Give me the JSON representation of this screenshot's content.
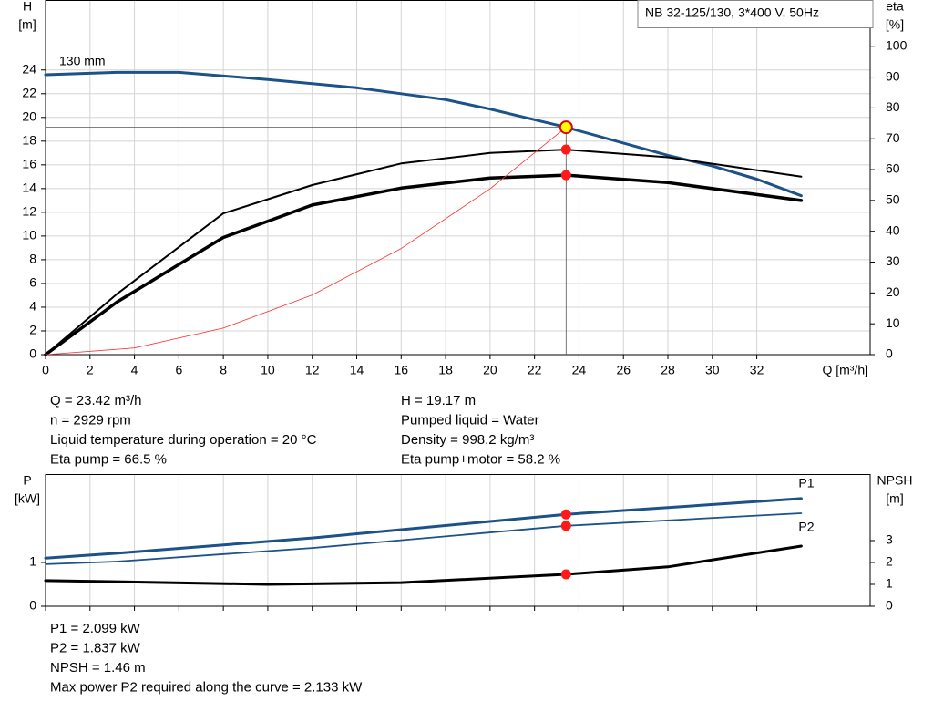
{
  "chart_data": [
    {
      "type": "line",
      "title": "NB 32-125/130, 3*400 V, 50Hz",
      "xlabel": "Q [m³/h]",
      "ylabel": [
        "H",
        "[m]"
      ],
      "y2label": [
        "eta",
        "[%]"
      ],
      "xlim": [
        0,
        37.1
      ],
      "xticks": [
        0,
        2,
        4,
        6,
        8,
        10,
        12,
        14,
        16,
        18,
        20,
        22,
        24,
        26,
        28,
        30,
        32
      ],
      "ylim": [
        0,
        29.9
      ],
      "yticks": [
        0,
        2,
        4,
        6,
        8,
        10,
        12,
        14,
        16,
        18,
        20,
        22,
        24
      ],
      "y2lim": [
        0,
        115
      ],
      "y2ticks": [
        0,
        10,
        20,
        30,
        40,
        50,
        60,
        70,
        80,
        90,
        100
      ],
      "grid": "both",
      "label_at": "start",
      "series": [
        {
          "name": "130 mm",
          "color": "#1c5189",
          "width": 3,
          "x": [
            0,
            3.2,
            6,
            10,
            14,
            18,
            20,
            23.42,
            28,
            30,
            32,
            34
          ],
          "values": [
            23.6,
            23.8,
            23.8,
            23.2,
            22.5,
            21.5,
            20.7,
            19.17,
            16.8,
            15.9,
            14.8,
            13.4
          ]
        },
        {
          "color": "#000000",
          "width": 2,
          "axis": "y2",
          "x": [
            0,
            3.2,
            8,
            12,
            16,
            20,
            23.42,
            28,
            34
          ],
          "values": [
            0,
            19.6,
            45.8,
            55,
            62,
            65.4,
            66.5,
            64,
            57.7
          ]
        },
        {
          "color": "#000000",
          "width": 3.5,
          "axis": "y2",
          "x": [
            0,
            3.2,
            8,
            12,
            16,
            20,
            23.42,
            28,
            34
          ],
          "values": [
            0,
            17,
            38,
            48.5,
            54,
            57.3,
            58.2,
            55.8,
            50
          ]
        },
        {
          "color": "#ff3030",
          "width": 0.8,
          "x": [
            0,
            4,
            8,
            12,
            16,
            20,
            23.42
          ],
          "values": [
            0,
            0.56,
            2.24,
            5.03,
            8.95,
            13.98,
            19.17
          ]
        }
      ],
      "markers": [
        {
          "x": 23.42,
          "y": 19.17,
          "color": "#ffff00",
          "edge": "#e00000",
          "crosshair": true
        },
        {
          "x": 23.42,
          "y": 66.5,
          "axis": "y2",
          "color": "#ff1a1a"
        },
        {
          "x": 23.42,
          "y": 58.2,
          "axis": "y2",
          "color": "#ff1a1a"
        }
      ],
      "info_left": [
        "Q = 23.42 m³/h",
        "n = 2929 rpm",
        "Liquid temperature during operation = 20 °C",
        "Eta pump = 66.5 %"
      ],
      "info_right": [
        "H = 19.17 m",
        "Pumped liquid = Water",
        "Density = 998.2 kg/m³",
        "Eta pump+motor = 58.2 %"
      ]
    },
    {
      "type": "line",
      "ylabel": [
        "P",
        "[kW]"
      ],
      "y2label": [
        "NPSH",
        "[m]"
      ],
      "xlim": [
        0,
        37.1
      ],
      "xticks": [
        0,
        2,
        4,
        6,
        8,
        10,
        12,
        14,
        16,
        18,
        20,
        22,
        24,
        26,
        28,
        30,
        32
      ],
      "xtick_labels": false,
      "ylim": [
        0,
        3.02
      ],
      "yticks": [
        0,
        1
      ],
      "y2lim": [
        0,
        6.04
      ],
      "y2ticks": [
        0,
        1,
        2,
        3
      ],
      "grid": "x",
      "label_at": "end",
      "series": [
        {
          "name": "P1",
          "color": "#1c5189",
          "width": 3,
          "x": [
            0,
            3.2,
            12,
            23.42,
            34
          ],
          "values": [
            1.1,
            1.21,
            1.56,
            2.099,
            2.46
          ]
        },
        {
          "name": "P2",
          "color": "#1c5189",
          "width": 1.8,
          "x": [
            0,
            3.2,
            12,
            23.42,
            34
          ],
          "values": [
            0.96,
            1.02,
            1.33,
            1.837,
            2.125
          ]
        },
        {
          "color": "#000000",
          "width": 3,
          "axis": "y2",
          "x": [
            0,
            3.2,
            10,
            16,
            23.42,
            28,
            34
          ],
          "values": [
            1.17,
            1.12,
            1.0,
            1.08,
            1.46,
            1.8,
            2.75
          ]
        }
      ],
      "markers": [
        {
          "x": 23.42,
          "y": 2.099,
          "color": "#ff1a1a"
        },
        {
          "x": 23.42,
          "y": 1.837,
          "color": "#ff1a1a"
        },
        {
          "x": 23.42,
          "y": 1.46,
          "axis": "y2",
          "color": "#ff1a1a"
        }
      ],
      "info": [
        "P1 = 2.099 kW",
        "P2 = 1.837 kW",
        "NPSH = 1.46 m",
        "Max power P2 required along the curve = 2.133 kW"
      ]
    }
  ]
}
